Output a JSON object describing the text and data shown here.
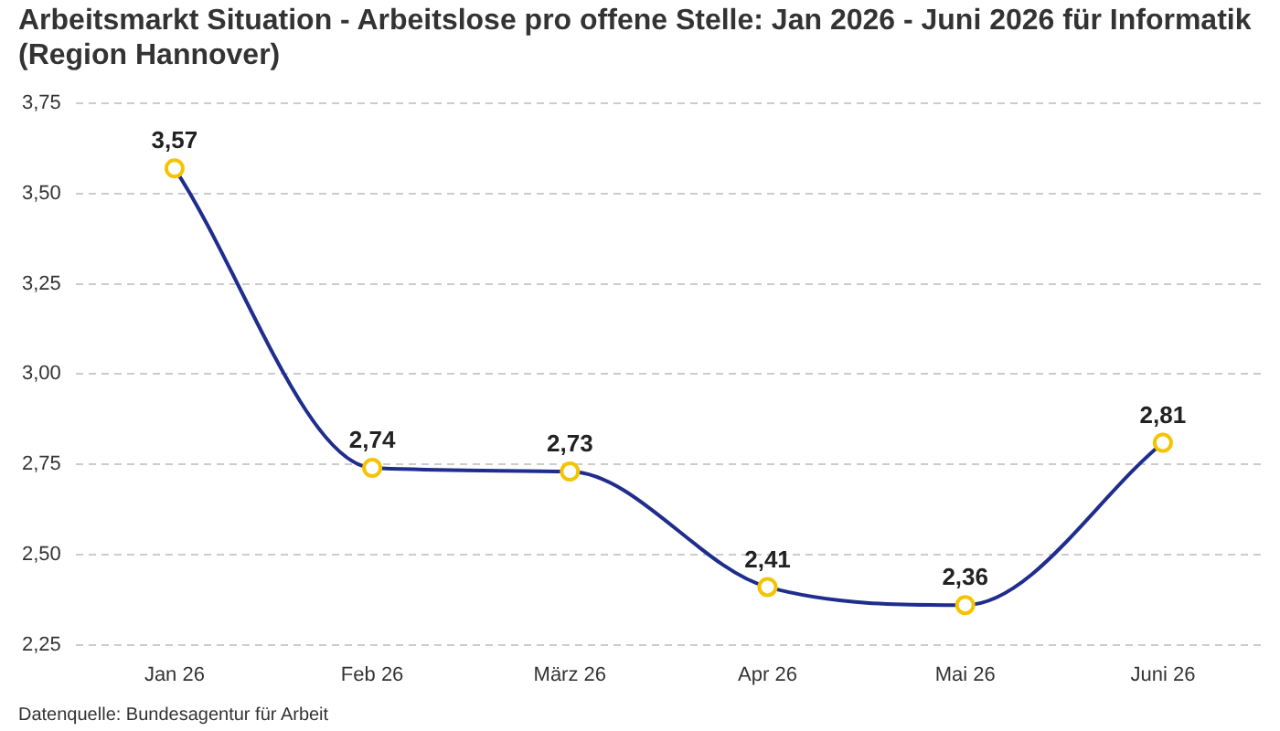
{
  "chart_data": {
    "type": "line",
    "title": "Arbeitsmarkt Situation - Arbeitslose pro offene Stelle: Jan 2026 - Juni 2026 für Informatik (Region Hannover)",
    "categories": [
      "Jan 26",
      "Feb 26",
      "März 26",
      "Apr 26",
      "Mai 26",
      "Juni 26"
    ],
    "series": [
      {
        "color": "#1f2d8c",
        "values": [
          3.57,
          2.74,
          2.73,
          2.41,
          2.36,
          2.81
        ],
        "value_labels": [
          "3,57",
          "2,74",
          "2,73",
          "2,41",
          "2,36",
          "2,81"
        ]
      }
    ],
    "ylim": [
      2.25,
      3.75
    ],
    "yticks": [
      {
        "value": 2.25,
        "label": "2,25"
      },
      {
        "value": 2.5,
        "label": "2,50"
      },
      {
        "value": 2.75,
        "label": "2,75"
      },
      {
        "value": 3,
        "label": "3,00"
      },
      {
        "value": 3.25,
        "label": "3,25"
      },
      {
        "value": 3.5,
        "label": "3,50"
      },
      {
        "value": 3.75,
        "label": "3,75"
      }
    ],
    "grid": "y",
    "marker": "circle",
    "legend": false,
    "annotations": [
      "Datenquelle: Bundesagentur für Arbeit"
    ]
  }
}
